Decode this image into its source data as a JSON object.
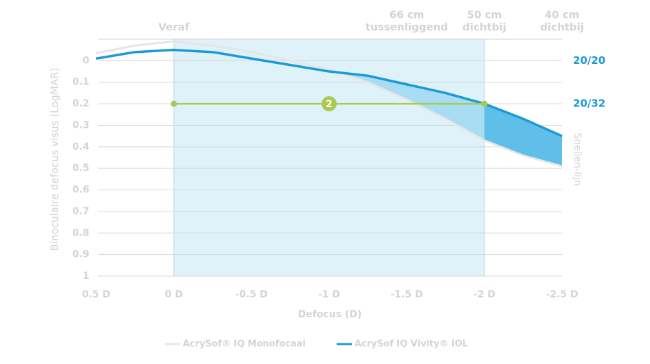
{
  "chart_data": {
    "type": "line",
    "x_label": "Defocus (D)",
    "y_label": "Binoculaire defocus visus (LogMAR)",
    "y2_label": "Snellen-lijn",
    "x": [
      0.5,
      0.25,
      0,
      -0.25,
      -0.5,
      -0.75,
      -1,
      -1.25,
      -1.5,
      -1.75,
      -2,
      -2.25,
      -2.5
    ],
    "series": [
      {
        "name": "AcrySof® IQ Monofocaal",
        "color": "#e6e6e6",
        "values": [
          -0.035,
          -0.07,
          -0.09,
          -0.07,
          -0.04,
          0.0,
          0.04,
          0.1,
          0.18,
          0.27,
          0.37,
          0.44,
          0.49
        ]
      },
      {
        "name": "AcrySof IQ Vivity® IOL",
        "color": "#1a9ad6",
        "values": [
          -0.01,
          -0.04,
          -0.05,
          -0.04,
          -0.01,
          0.02,
          0.05,
          0.07,
          0.11,
          0.15,
          0.2,
          0.27,
          0.35
        ]
      }
    ],
    "xlim": [
      0.5,
      -2.5
    ],
    "xticks": [
      {
        "value": 0.5,
        "label": "0.5 D"
      },
      {
        "value": 0,
        "label": "0 D"
      },
      {
        "value": -0.5,
        "label": "-0.5 D"
      },
      {
        "value": -1,
        "label": "-1 D"
      },
      {
        "value": -1.5,
        "label": "-1.5 D"
      },
      {
        "value": -2,
        "label": "-2 D"
      },
      {
        "value": -2.5,
        "label": "-2.5 D"
      }
    ],
    "ylim": [
      -0.1,
      1
    ],
    "y_inverted": true,
    "yticks": [
      0,
      0.1,
      0.2,
      0.3,
      0.4,
      0.5,
      0.6,
      0.7,
      0.8,
      0.9,
      1
    ],
    "grid": true,
    "right_labels": [
      {
        "value": 0,
        "label": "20/20"
      },
      {
        "value": 0.2,
        "label": "20/32"
      }
    ],
    "distance_labels": [
      {
        "value": 0,
        "label": [
          "Veraf"
        ]
      },
      {
        "value": -1.5,
        "label": [
          "66 cm",
          "tussenliggend"
        ]
      },
      {
        "value": -2,
        "label": [
          "50 cm",
          "dichtbij"
        ]
      },
      {
        "value": -2.5,
        "label": [
          "40 cm",
          "dichtbij"
        ]
      }
    ],
    "highlight_range": [
      0,
      -2
    ],
    "highlight_color": "#dff1f9",
    "difference_fills": [
      {
        "from": -1,
        "to": -2,
        "color": "#a8dcf2"
      },
      {
        "from": -2,
        "to": -2.5,
        "color": "#5fbfe8"
      }
    ],
    "reference_line": {
      "y": 0.2,
      "from": 0,
      "to": -2,
      "label": "2",
      "color": "#a9cb52"
    }
  }
}
